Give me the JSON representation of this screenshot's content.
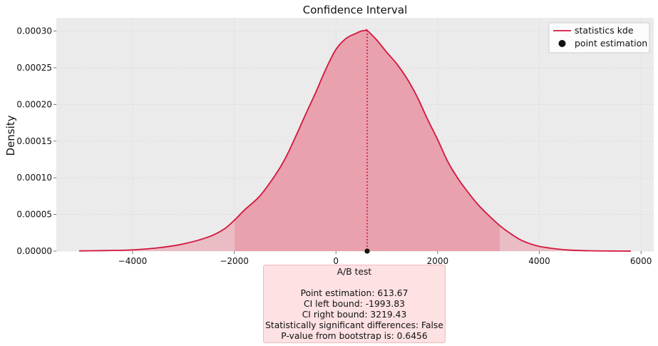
{
  "chart_data": {
    "type": "kde",
    "title": "Confidence Interval",
    "xlabel": "",
    "ylabel": "Density",
    "xlim": [
      -5500,
      6250
    ],
    "ylim": [
      0,
      0.000318
    ],
    "x_ticks": [
      -4000,
      -2000,
      0,
      2000,
      4000,
      6000
    ],
    "x_tick_labels": [
      "−4000",
      "−2000",
      "0",
      "2000",
      "4000",
      "6000"
    ],
    "y_ticks": [
      0,
      5e-05,
      0.0001,
      0.00015,
      0.0002,
      0.00025,
      0.0003
    ],
    "y_tick_labels": [
      "0.00000",
      "0.00005",
      "0.00010",
      "0.00015",
      "0.00020",
      "0.00025",
      "0.00030"
    ],
    "grid": true,
    "legend_position": "top-right",
    "legend": [
      "statistics kde",
      "point estimation"
    ],
    "series": [
      {
        "name": "statistics kde",
        "color": "#d3163e",
        "x": [
          -5050,
          -4500,
          -4000,
          -3500,
          -3000,
          -2500,
          -2200,
          -2000,
          -1800,
          -1500,
          -1200,
          -1000,
          -800,
          -600,
          -400,
          -200,
          0,
          200,
          400,
          500,
          600,
          613.67,
          800,
          1000,
          1200,
          1400,
          1600,
          1800,
          2000,
          2200,
          2400,
          2600,
          2800,
          3000,
          3219.43,
          3400,
          3600,
          3800,
          4000,
          4300,
          4600,
          5000,
          5400,
          5800
        ],
        "density": [
          3e-07,
          8e-07,
          1.7e-06,
          4.5e-06,
          9.8e-06,
          1.95e-05,
          3e-05,
          4.2e-05,
          5.6e-05,
          7.5e-05,
          0.000103,
          0.000126,
          0.000155,
          0.000186,
          0.000216,
          0.000248,
          0.000275,
          0.00029,
          0.000297,
          0.0003,
          0.000301,
          0.000301,
          0.000288,
          0.000271,
          0.000255,
          0.000235,
          0.00021,
          0.00018,
          0.000152,
          0.000122,
          9.9e-05,
          8e-05,
          6.3e-05,
          4.9e-05,
          3.5e-05,
          2.55e-05,
          1.65e-05,
          1.05e-05,
          6.5e-06,
          3.3e-06,
          1.4e-06,
          5e-07,
          2e-07,
          5e-08
        ]
      }
    ],
    "point_estimation": {
      "name": "point estimation",
      "x": 613.67,
      "y": 0,
      "color": "#111111"
    },
    "ci": {
      "left": -1993.83,
      "right": 3219.43
    },
    "colors": {
      "background": "#ebebeb",
      "line": "#d3163e",
      "ci_fill": "#e8a1ad",
      "tail_fill": "#eabcc4",
      "point": "#111111"
    }
  },
  "summary": {
    "heading": "A/B test",
    "lines": [
      "Point estimation: 613.67",
      "CI left bound: -1993.83",
      "CI right bound: 3219.43",
      "Statistically significant differences: False",
      "P-value from bootstrap is: 0.6456"
    ]
  }
}
